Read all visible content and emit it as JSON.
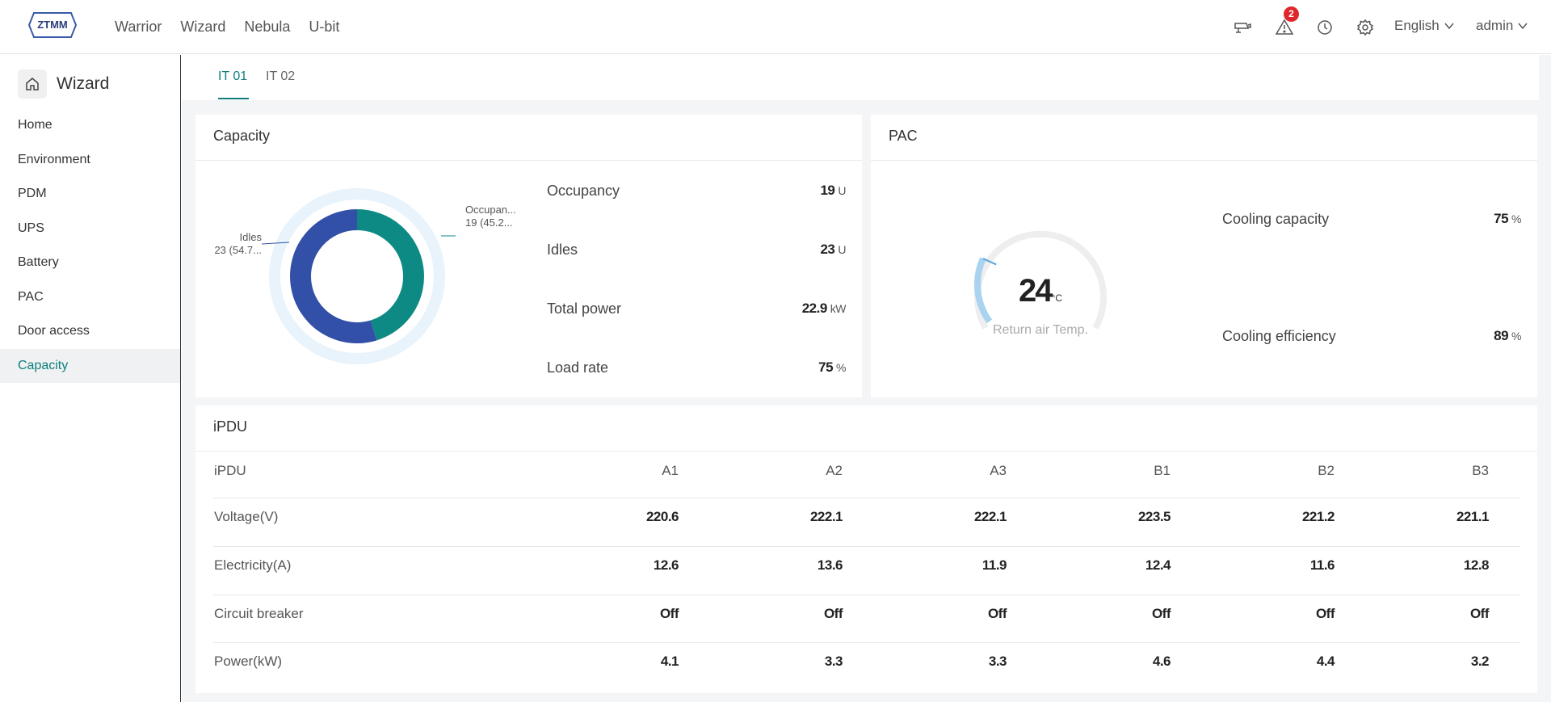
{
  "nav": {
    "items": [
      "Warrior",
      "Wizard",
      "Nebula",
      "U-bit"
    ],
    "alarm_count": "2",
    "language": "English",
    "user": "admin"
  },
  "logo": {
    "text": "ZTMM"
  },
  "sidebar": {
    "title": "Wizard",
    "items": [
      "Home",
      "Environment",
      "PDM",
      "UPS",
      "Battery",
      "PAC",
      "Door access",
      "Capacity"
    ],
    "active": "Capacity"
  },
  "tabs": [
    "IT 01",
    "IT 02"
  ],
  "capacity": {
    "title": "Capacity",
    "stats": [
      {
        "label": "Occupancy",
        "value": "19",
        "unit": "U"
      },
      {
        "label": "Idles",
        "value": "23",
        "unit": "U"
      },
      {
        "label": "Total power",
        "value": "22.9",
        "unit": "kW"
      },
      {
        "label": "Load rate",
        "value": "75",
        "unit": "%"
      }
    ],
    "donut_labels": {
      "occupancy_name": "Occupan...",
      "occupancy_value": "19 (45.2...",
      "idles_name": "Idles",
      "idles_value": "23 (54.7..."
    }
  },
  "pac": {
    "title": "PAC",
    "gauge_value": "24",
    "gauge_unit": "°C",
    "gauge_label": "Return air Temp.",
    "stats": [
      {
        "label": "Cooling capacity",
        "value": "75",
        "unit": "%"
      },
      {
        "label": "Cooling efficiency",
        "value": "89",
        "unit": "%"
      }
    ]
  },
  "ipdu": {
    "title": "iPDU",
    "header_label": "iPDU",
    "columns": [
      "A1",
      "A2",
      "A3",
      "B1",
      "B2",
      "B3"
    ],
    "rows": [
      {
        "label": "Voltage(V)",
        "values": [
          "220.6",
          "222.1",
          "222.1",
          "223.5",
          "221.2",
          "221.1"
        ]
      },
      {
        "label": "Electricity(A)",
        "values": [
          "12.6",
          "13.6",
          "11.9",
          "12.4",
          "11.6",
          "12.8"
        ]
      },
      {
        "label": "Circuit breaker",
        "values": [
          "Off",
          "Off",
          "Off",
          "Off",
          "Off",
          "Off"
        ]
      },
      {
        "label": "Power(kW)",
        "values": [
          "4.1",
          "3.3",
          "3.3",
          "4.6",
          "4.4",
          "3.2"
        ]
      }
    ]
  },
  "chart_data": [
    {
      "type": "pie",
      "categories": [
        "Occupancy",
        "Idles"
      ],
      "values": [
        19,
        23
      ],
      "colors": [
        "#0e8a85",
        "#3350a8"
      ]
    },
    {
      "type": "gauge",
      "value": 24,
      "unit": "°C",
      "label": "Return air Temp."
    }
  ]
}
